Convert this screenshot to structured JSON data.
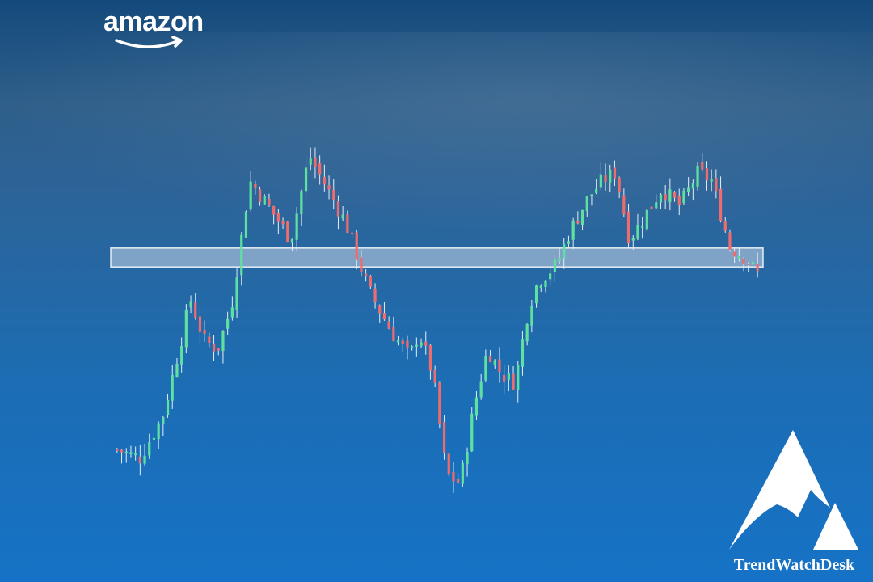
{
  "brand": {
    "name": "amazon",
    "logo_icon": "amazon-smile-arrow-icon"
  },
  "watermark": {
    "label": "TrendWatchDesk",
    "icon": "mountain-peak-icon"
  },
  "colors": {
    "background_top": "#144a7c",
    "background_bottom": "#1672c6",
    "candle_up": "#5fe0a0",
    "candle_down": "#f06b6b",
    "zone_fill": "#c8d6e6"
  },
  "chart_data": {
    "type": "candlestick",
    "title": "",
    "xlabel": "",
    "ylabel": "",
    "axes_visible": false,
    "grid": false,
    "ylim": [
      0,
      100
    ],
    "highlight_zone": {
      "label": "",
      "y_low": 61.5,
      "y_high": 66
    },
    "series": [
      {
        "waypoints": [
          [
            0,
            18
          ],
          [
            5,
            16
          ],
          [
            10,
            26
          ],
          [
            14,
            44
          ],
          [
            16,
            54
          ],
          [
            19,
            44
          ],
          [
            22,
            42
          ],
          [
            25,
            52
          ],
          [
            29,
            82
          ],
          [
            33,
            76
          ],
          [
            38,
            68
          ],
          [
            42,
            88
          ],
          [
            45,
            82
          ],
          [
            50,
            72
          ],
          [
            55,
            56
          ],
          [
            60,
            46
          ],
          [
            64,
            40
          ],
          [
            66,
            46
          ],
          [
            69,
            36
          ],
          [
            72,
            12
          ],
          [
            75,
            10
          ],
          [
            78,
            28
          ],
          [
            81,
            42
          ],
          [
            84,
            36
          ],
          [
            87,
            34
          ],
          [
            90,
            52
          ],
          [
            92,
            58
          ],
          [
            96,
            62
          ],
          [
            99,
            70
          ],
          [
            103,
            78
          ],
          [
            106,
            82
          ],
          [
            109,
            84
          ],
          [
            112,
            68
          ],
          [
            115,
            73
          ],
          [
            119,
            80
          ],
          [
            123,
            76
          ],
          [
            127,
            84
          ],
          [
            130,
            82
          ],
          [
            134,
            66
          ],
          [
            137,
            64
          ],
          [
            140,
            60
          ]
        ],
        "candles": 140
      }
    ]
  }
}
